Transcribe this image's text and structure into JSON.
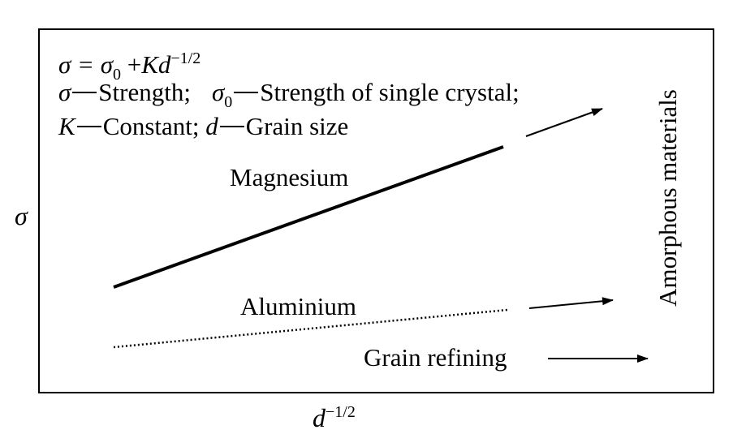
{
  "formula": {
    "main": "σ = σ",
    "main_sub": "0",
    "main_plus": " +",
    "main_k": "Kd",
    "main_exp": "−1/2"
  },
  "legend": {
    "sigma": "σ",
    "strength": "Strength;",
    "sigma0": "σ",
    "sigma0_sub": "0",
    "strength_single": "Strength of single crystal;",
    "k": "K",
    "constant": "Constant;",
    "d": "d",
    "grain_size": "Grain size"
  },
  "labels": {
    "magnesium": "Magnesium",
    "aluminium": "Aluminium",
    "grain_refining": "Grain refining",
    "amorphous": "Amorphous materials"
  },
  "axes": {
    "y_label": "σ",
    "x_label_d": "d",
    "x_label_exp": "−1/2"
  }
}
